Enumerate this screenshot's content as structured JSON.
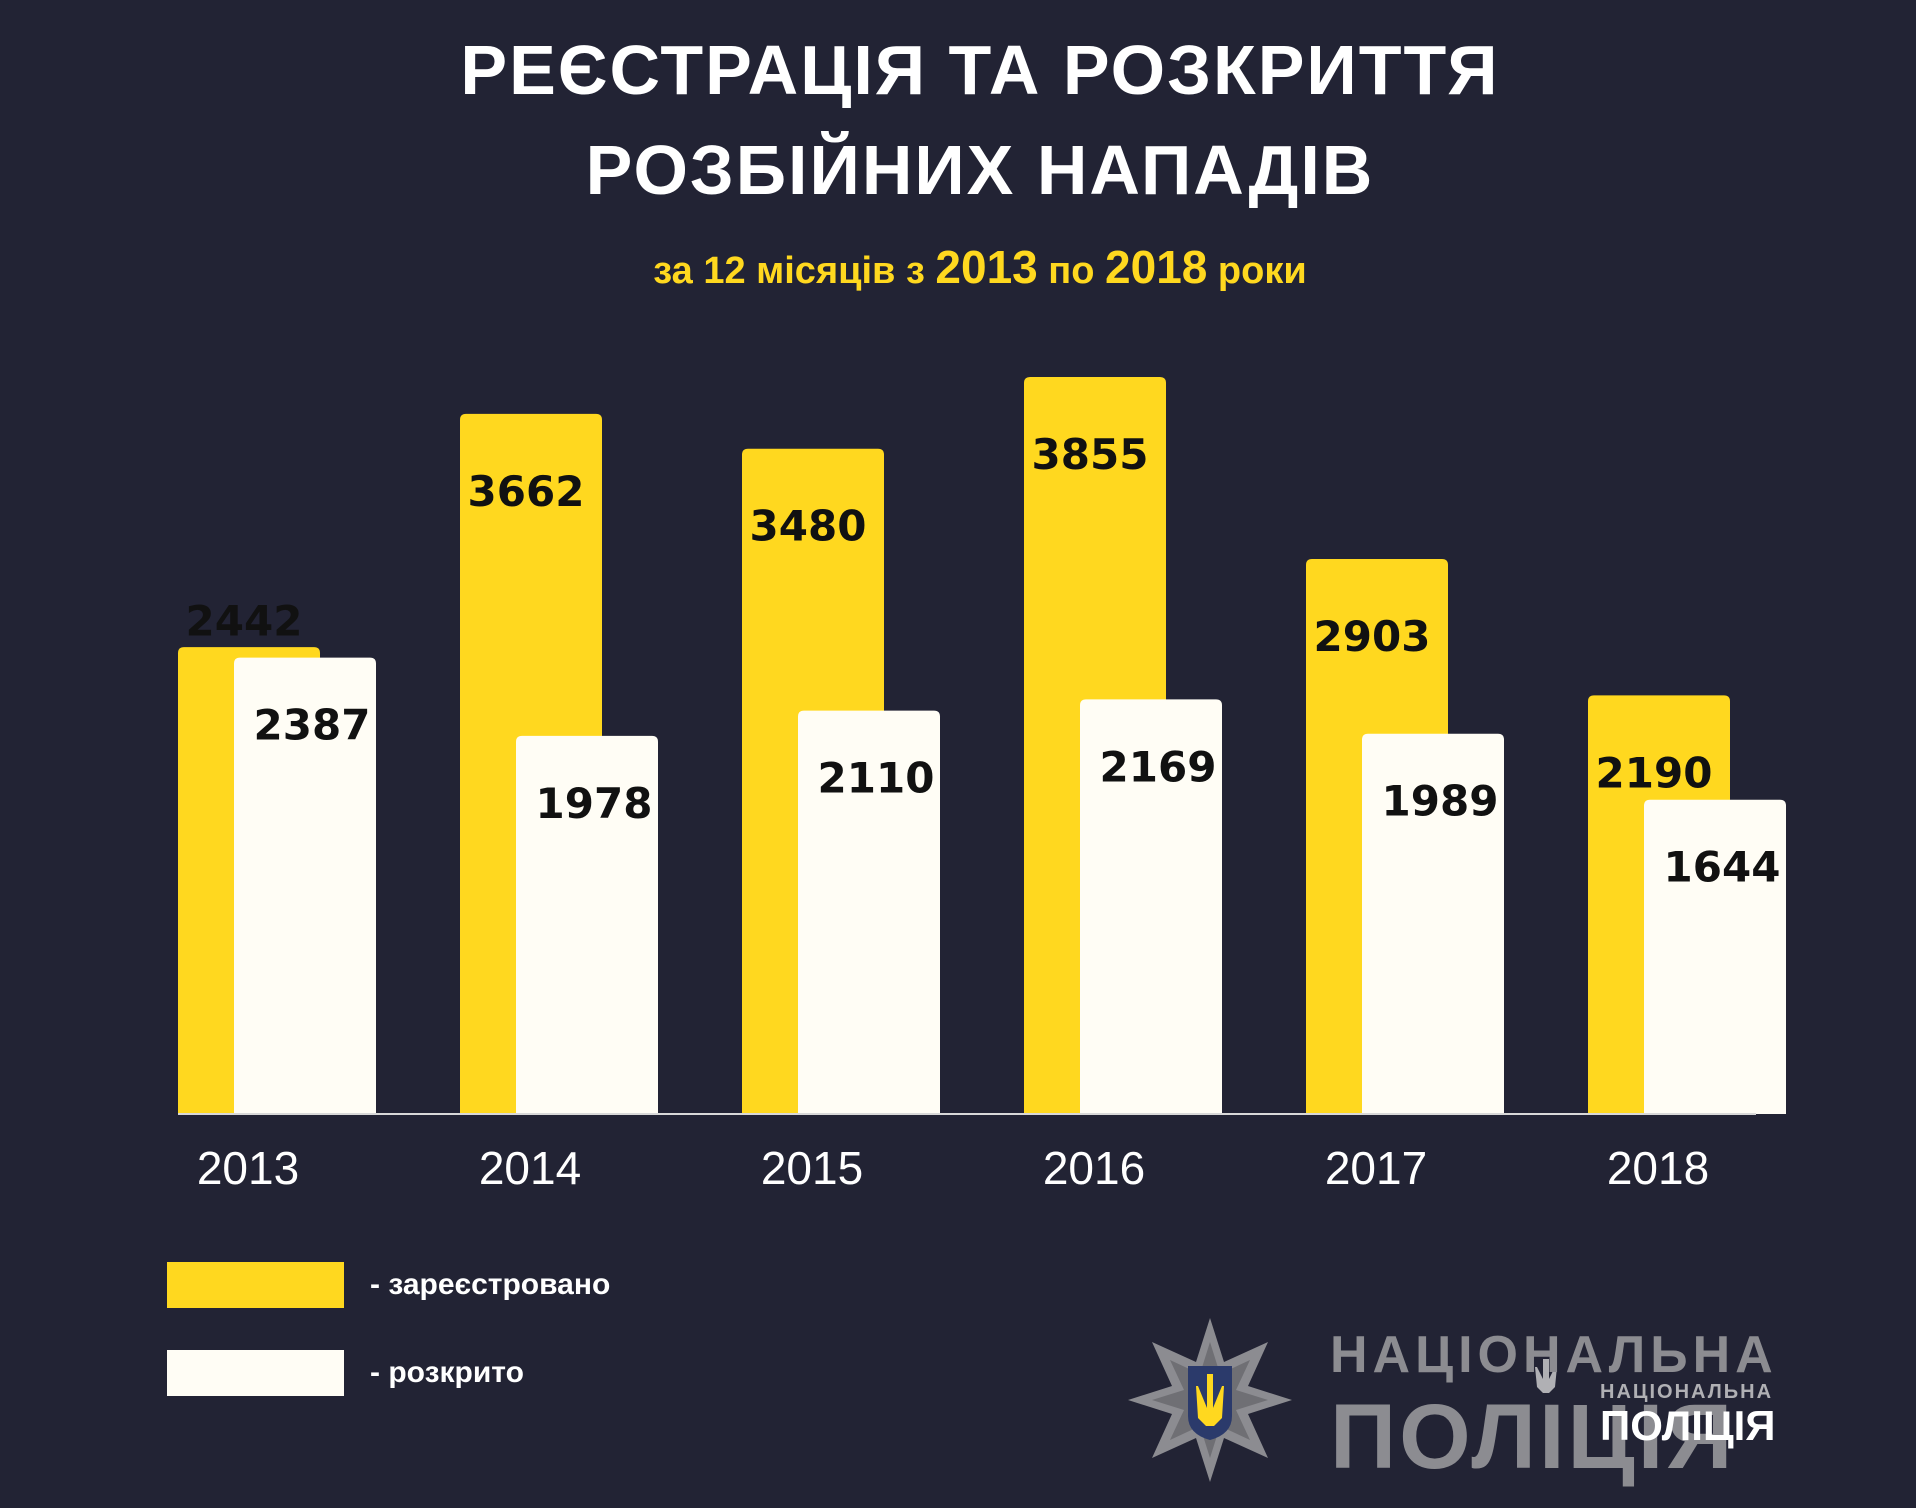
{
  "title_line1": "РЕЄСТРАЦІЯ ТА РОЗКРИТТЯ",
  "title_line2": "РОЗБІЙНИХ НАПАДІВ",
  "subtitle": {
    "part1": "за 12 місяців з ",
    "year_from": "2013",
    "part2": " по ",
    "year_to": "2018",
    "part3": " роки"
  },
  "colors": {
    "background": "#222334",
    "registered": "#FFD81F",
    "solved": "#FFFDF5",
    "axis": "#d8d8d8"
  },
  "chart_data": {
    "type": "bar",
    "categories": [
      "2013",
      "2014",
      "2015",
      "2016",
      "2017",
      "2018"
    ],
    "series": [
      {
        "name": "- зареєстровано",
        "values": [
          2442,
          3662,
          3480,
          3855,
          2903,
          2190
        ]
      },
      {
        "name": "- розкрито",
        "values": [
          2387,
          1978,
          2110,
          2169,
          1989,
          1644
        ]
      }
    ],
    "title": "РЕЄСТРАЦІЯ ТА РОЗКРИТТЯ РОЗБІЙНИХ НАПАДІВ",
    "subtitle": "за 12 місяців з 2013 по 2018 роки",
    "legend_position": "bottom-left",
    "data_labels": true,
    "grid": false
  },
  "legend": {
    "registered_label": "- зареєстровано",
    "solved_label": "- розкрито"
  },
  "logo": {
    "line1": "НАЦІОНАЛЬНА",
    "line2": "ПОЛІЦІЯ",
    "small_line1": "НАЦІОНАЛЬНА",
    "small_line2": "ПОЛІЦІЯ"
  }
}
